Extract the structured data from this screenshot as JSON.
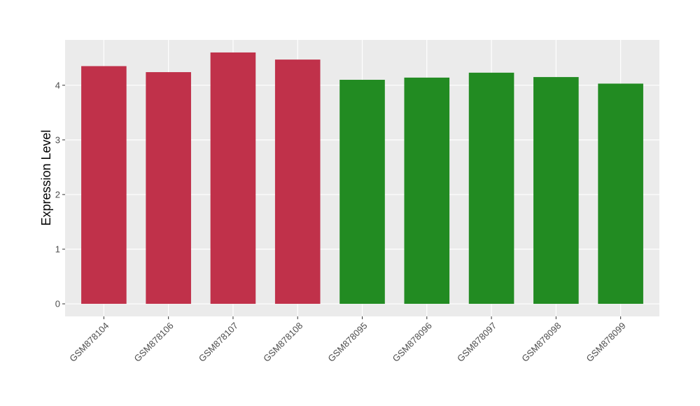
{
  "chart_data": {
    "type": "bar",
    "y_label": "Expression Level",
    "categories": [
      "GSM878104",
      "GSM878106",
      "GSM878107",
      "GSM878108",
      "GSM878095",
      "GSM878096",
      "GSM878097",
      "GSM878098",
      "GSM878099"
    ],
    "values": [
      4.35,
      4.24,
      4.6,
      4.47,
      4.1,
      4.14,
      4.23,
      4.15,
      4.03
    ],
    "colors": [
      "#c0314a",
      "#c0314a",
      "#c0314a",
      "#c0314a",
      "#228b22",
      "#228b22",
      "#228b22",
      "#228b22",
      "#228b22"
    ],
    "ylim": [
      -0.23,
      4.83
    ],
    "yticks": [
      0,
      1,
      2,
      3,
      4
    ],
    "grid": true
  }
}
